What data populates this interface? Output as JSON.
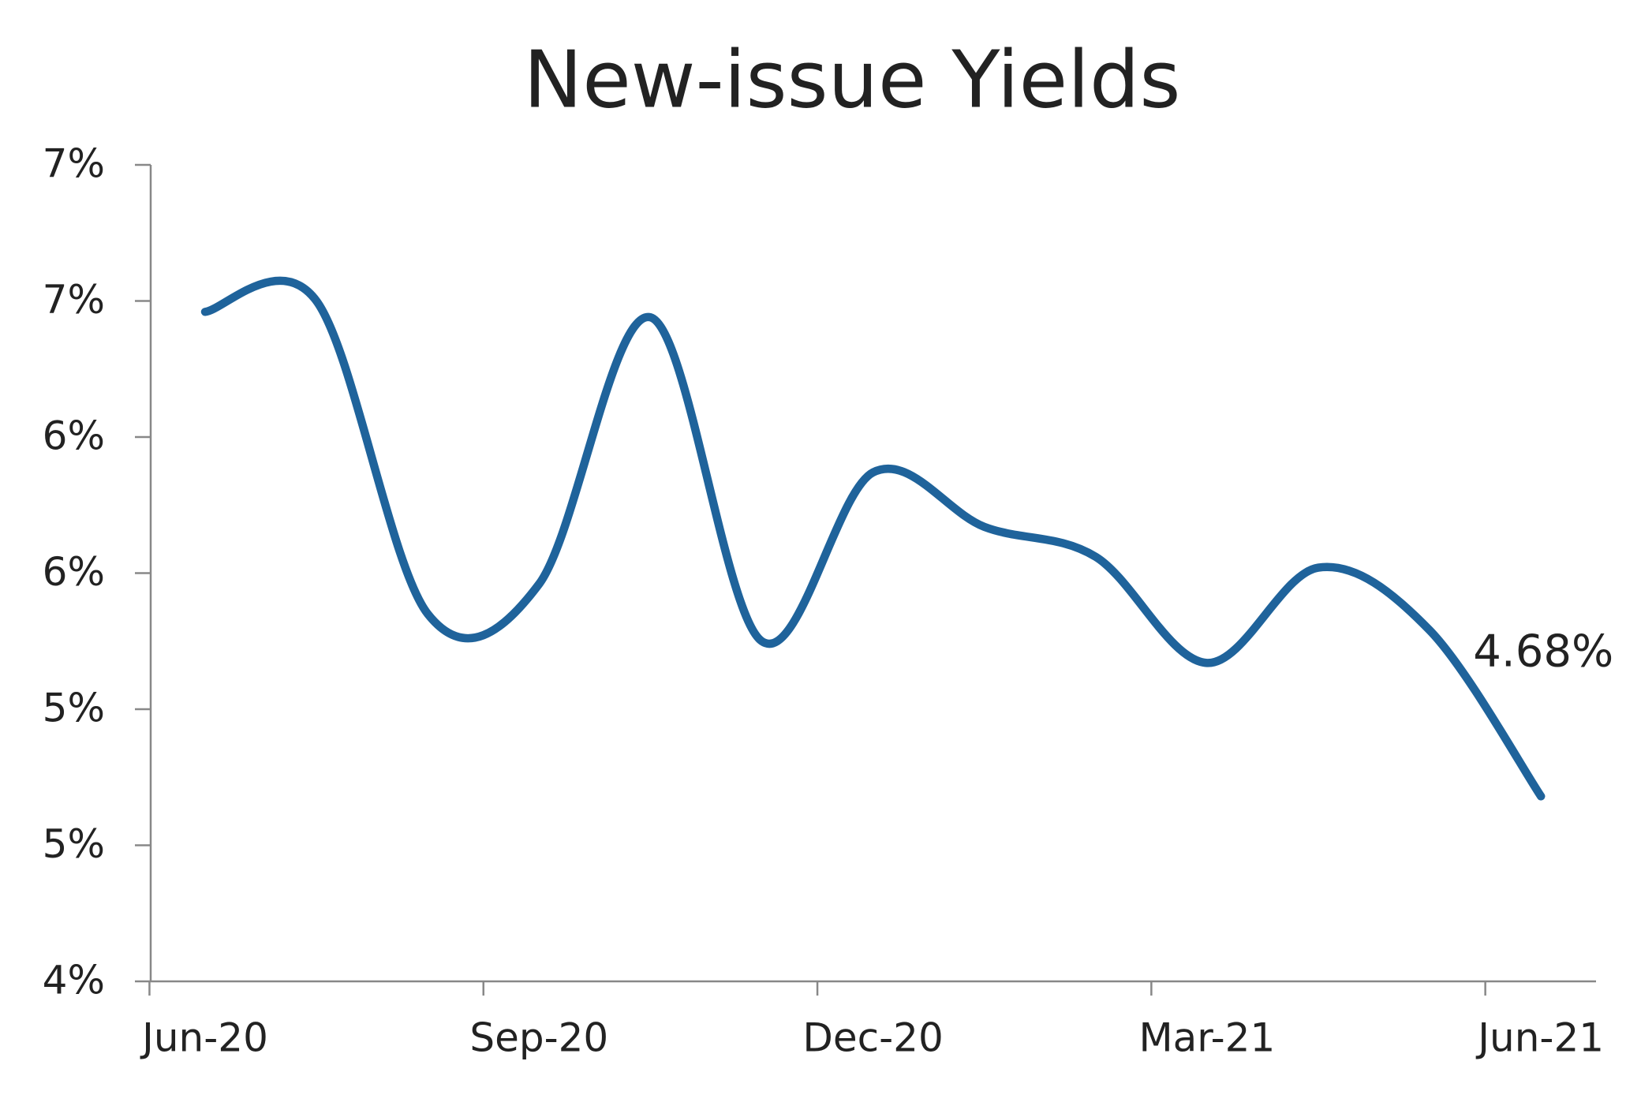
{
  "chart_data": {
    "type": "line",
    "title": "New-issue Yields",
    "categories": [
      "Jun-20",
      null,
      null,
      "Sep-20",
      null,
      null,
      "Dec-20",
      null,
      null,
      "Mar-21",
      null,
      null,
      "Jun-21"
    ],
    "series": [
      {
        "name": "New-issue Yields",
        "color": "#1f639b",
        "values": [
          6.46,
          6.5,
          5.35,
          5.46,
          6.44,
          5.25,
          5.87,
          5.67,
          5.56,
          5.17,
          5.52,
          5.29,
          4.68
        ],
        "value_labels": [
          null,
          null,
          null,
          null,
          null,
          null,
          null,
          null,
          null,
          null,
          null,
          null,
          "4.68%"
        ]
      }
    ],
    "ylim": [
      4,
      7
    ],
    "yticks": [
      {
        "value": 4,
        "label": "4%"
      },
      {
        "value": 4.5,
        "label": "5%"
      },
      {
        "value": 5,
        "label": "5%"
      },
      {
        "value": 5.5,
        "label": "6%"
      },
      {
        "value": 6,
        "label": "6%"
      },
      {
        "value": 6.5,
        "label": "7%"
      },
      {
        "value": 7,
        "label": "7%"
      }
    ]
  }
}
